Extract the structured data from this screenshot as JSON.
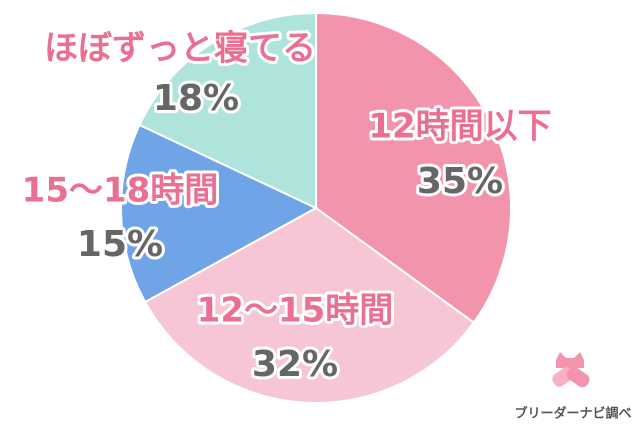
{
  "chart_data": {
    "type": "pie",
    "categories": [
      "12時間以下",
      "12〜15時間",
      "15〜18時間",
      "ほぼずっと寝てる"
    ],
    "values": [
      35,
      32,
      15,
      18
    ],
    "value_labels": [
      "35%",
      "32%",
      "15%",
      "18%"
    ],
    "colors": [
      "#f394ad",
      "#f7c6d5",
      "#6fa4e6",
      "#aee4db"
    ],
    "source": "ブリーダーナビ調べ"
  }
}
